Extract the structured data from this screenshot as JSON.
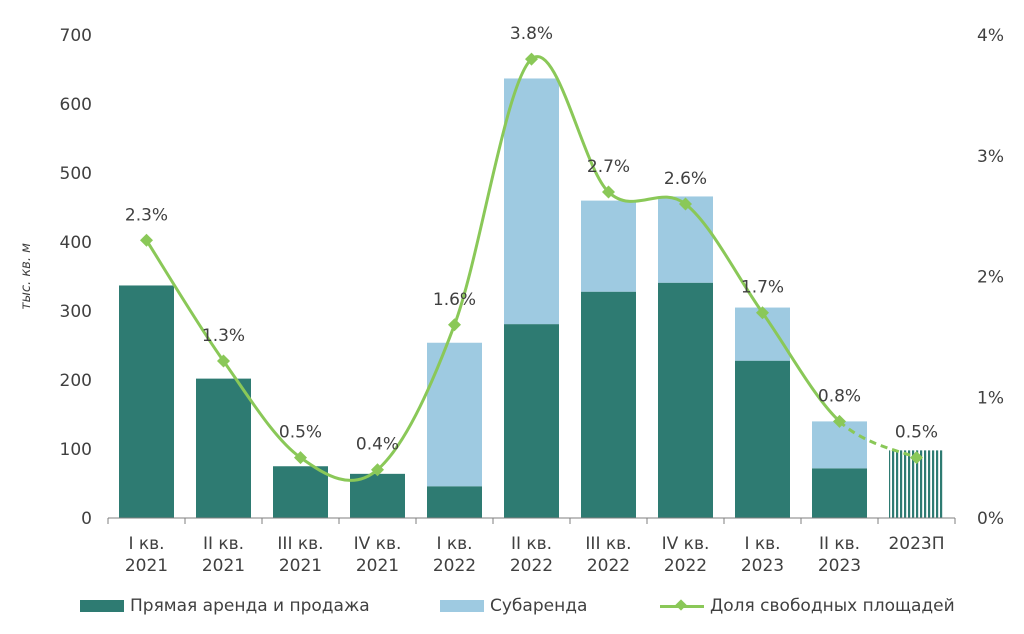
{
  "chart_data": {
    "type": "bar",
    "stacked": true,
    "categories": [
      [
        "I кв.",
        "2021"
      ],
      [
        "II кв.",
        "2021"
      ],
      [
        "III кв.",
        "2021"
      ],
      [
        "IV кв.",
        "2021"
      ],
      [
        "I кв.",
        "2022"
      ],
      [
        "II кв.",
        "2022"
      ],
      [
        "III кв.",
        "2022"
      ],
      [
        "IV кв.",
        "2022"
      ],
      [
        "I кв.",
        "2023"
      ],
      [
        "II кв.",
        "2023"
      ],
      [
        "2023П"
      ]
    ],
    "series": [
      {
        "name": "Прямая аренда и продажа",
        "color": "#2e7b72",
        "values": [
          337,
          202,
          75,
          64,
          46,
          281,
          328,
          341,
          228,
          72,
          98
        ]
      },
      {
        "name": "Субаренда",
        "color": "#9ecae1",
        "values": [
          0,
          0,
          0,
          0,
          208,
          356,
          132,
          125,
          77,
          68,
          0
        ]
      }
    ],
    "line_series": {
      "name": "Доля свободных площадей",
      "color": "#8ac858",
      "values": [
        2.3,
        1.3,
        0.5,
        0.4,
        1.6,
        3.8,
        2.7,
        2.6,
        1.7,
        0.8,
        0.5
      ],
      "labels": [
        "2.3%",
        "1.3%",
        "0.5%",
        "0.4%",
        "1.6%",
        "3.8%",
        "2.7%",
        "2.6%",
        "1.7%",
        "0.8%",
        "0.5%"
      ],
      "forecast_from_index": 9
    },
    "ylabel": "тыс. кв. м",
    "ylim": [
      0,
      700
    ],
    "yticks": [
      "0",
      "100",
      "200",
      "300",
      "400",
      "500",
      "600",
      "700"
    ],
    "y2lim": [
      0,
      4
    ],
    "y2ticks": [
      "0%",
      "1%",
      "2%",
      "3%",
      "4%"
    ],
    "forecast_bar_index": 10,
    "legend_position": "bottom"
  },
  "legend": {
    "item1": "Прямая аренда и продажа",
    "item2": "Субаренда",
    "item3": "Доля свободных площадей"
  }
}
